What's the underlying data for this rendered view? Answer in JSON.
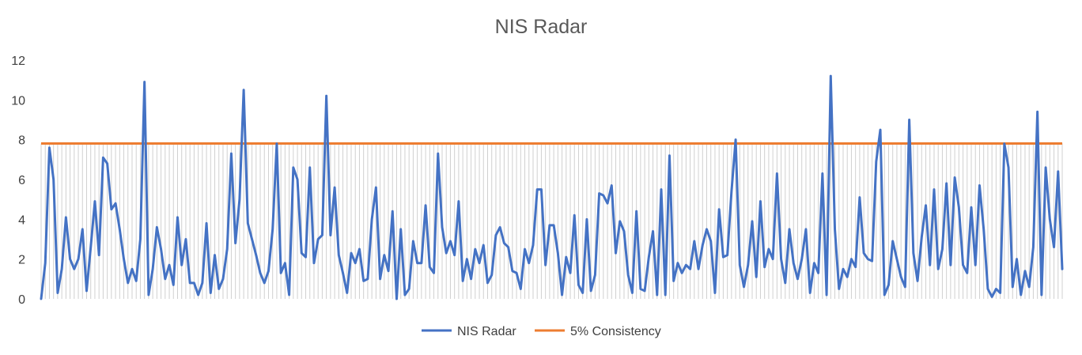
{
  "chart_data": {
    "type": "line",
    "title": "NIS Radar",
    "xlabel": "",
    "ylabel": "",
    "ylim": [
      0,
      12
    ],
    "yticks": [
      0,
      2,
      4,
      6,
      8,
      10,
      12
    ],
    "grid": "vertical dropline hatching",
    "legend_position": "bottom",
    "colors": {
      "nis": "#4472C4",
      "threshold": "#ED7D31",
      "hatch": "#D0D0D0",
      "text": "#404040",
      "title": "#595959"
    },
    "series": [
      {
        "name": "NIS Radar",
        "values": [
          0.0,
          1.8,
          7.6,
          6.0,
          0.3,
          1.5,
          4.1,
          2.0,
          1.5,
          2.0,
          3.5,
          0.4,
          2.6,
          4.9,
          2.2,
          7.1,
          6.8,
          4.5,
          4.8,
          3.5,
          2.0,
          0.8,
          1.5,
          0.9,
          3.0,
          10.9,
          0.2,
          1.5,
          3.6,
          2.5,
          1.0,
          1.7,
          0.7,
          4.1,
          1.7,
          3.0,
          0.8,
          0.8,
          0.2,
          0.8,
          3.8,
          0.3,
          2.2,
          0.5,
          1.0,
          2.5,
          7.3,
          2.8,
          5.0,
          10.5,
          3.8,
          3.0,
          2.2,
          1.3,
          0.8,
          1.4,
          3.5,
          7.8,
          1.3,
          1.8,
          0.2,
          6.6,
          6.0,
          2.3,
          2.1,
          6.6,
          1.8,
          3.0,
          3.2,
          10.2,
          3.2,
          5.6,
          2.2,
          1.3,
          0.3,
          2.3,
          1.8,
          2.5,
          0.9,
          1.0,
          4.0,
          5.6,
          1.0,
          2.2,
          1.4,
          4.4,
          0.0,
          3.5,
          0.2,
          0.5,
          2.9,
          1.8,
          1.8,
          4.7,
          1.6,
          1.3,
          7.3,
          3.6,
          2.3,
          2.9,
          2.2,
          4.9,
          0.9,
          2.0,
          1.0,
          2.5,
          1.8,
          2.7,
          0.8,
          1.2,
          3.2,
          3.6,
          2.8,
          2.6,
          1.4,
          1.3,
          0.5,
          2.5,
          1.8,
          2.7,
          5.5,
          5.5,
          1.7,
          3.7,
          3.7,
          2.3,
          0.2,
          2.1,
          1.3,
          4.2,
          0.7,
          0.3,
          4.0,
          0.4,
          1.2,
          5.3,
          5.2,
          4.8,
          5.7,
          2.3,
          3.9,
          3.4,
          1.2,
          0.3,
          4.4,
          0.5,
          0.4,
          2.1,
          3.4,
          0.2,
          5.5,
          0.2,
          7.2,
          0.9,
          1.8,
          1.3,
          1.7,
          1.5,
          2.9,
          1.5,
          2.7,
          3.5,
          2.9,
          0.3,
          4.5,
          2.1,
          2.2,
          5.4,
          8.0,
          1.7,
          0.6,
          1.7,
          3.9,
          1.1,
          4.9,
          1.6,
          2.5,
          2.0,
          6.3,
          2.0,
          0.8,
          3.5,
          1.8,
          1.0,
          2.0,
          3.5,
          0.3,
          1.8,
          1.3,
          6.3,
          0.2,
          11.2,
          3.5,
          0.5,
          1.5,
          1.1,
          2.0,
          1.6,
          5.1,
          2.3,
          2.0,
          1.9,
          6.9,
          8.5,
          0.2,
          0.7,
          2.9,
          2.0,
          1.1,
          0.6,
          9.0,
          2.3,
          0.9,
          3.1,
          4.7,
          1.7,
          5.5,
          1.5,
          2.5,
          5.8,
          1.7,
          6.1,
          4.6,
          1.7,
          1.3,
          4.6,
          1.7,
          5.7,
          3.5,
          0.5,
          0.1,
          0.5,
          0.3,
          7.8,
          6.6,
          0.6,
          2.0,
          0.2,
          1.4,
          0.6,
          2.6,
          9.4,
          0.2,
          6.6,
          4.0,
          2.6,
          6.4,
          1.5
        ]
      },
      {
        "name": "5% Consistency",
        "constant": 7.81
      }
    ]
  }
}
